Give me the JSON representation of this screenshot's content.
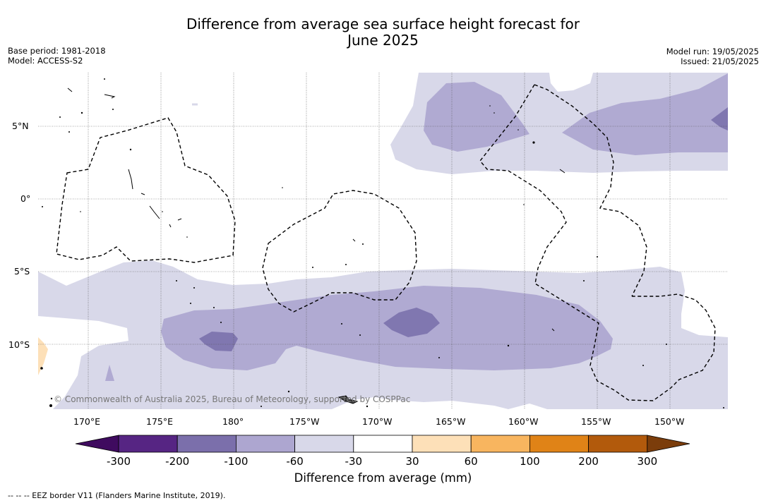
{
  "title": {
    "line1": "Difference from average sea surface height forecast for",
    "line2": "June 2025"
  },
  "meta_left": {
    "base_period": "Base period: 1981-2018",
    "model": "Model: ACCESS-S2"
  },
  "meta_right": {
    "model_run": "Model run: 19/05/2025",
    "issued": "Issued: 21/05/2025"
  },
  "map": {
    "lat_labels": [
      "5°N",
      "0°",
      "5°S",
      "10°S"
    ],
    "lon_labels": [
      "170°E",
      "175°E",
      "180°",
      "175°W",
      "170°W",
      "165°W",
      "160°W",
      "155°W",
      "150°W"
    ],
    "copyright": "© Commonwealth of Australia 2025, Bureau of Meteorology, supported by COSPPac",
    "fill_colors": {
      "-60_-30": "#d8d8e9",
      "-100_-60": "#b0aad2",
      "-200_-100": "#8077b0",
      "30_60": "#fde0b8"
    }
  },
  "colorbar": {
    "ticks": [
      "-300",
      "-200",
      "-100",
      "-60",
      "-30",
      "30",
      "60",
      "100",
      "200",
      "300"
    ],
    "colors": [
      "#3f0b5f",
      "#562583",
      "#7b6fab",
      "#ada6d0",
      "#d8d8e9",
      "#ffffff",
      "#fde0b8",
      "#f8b55f",
      "#e08317",
      "#b25a0c",
      "#7b3d0b"
    ],
    "label": "Difference from average (mm)"
  },
  "footer": "--  --  -- EEZ border V11 (Flanders Marine Institute, 2019)."
}
